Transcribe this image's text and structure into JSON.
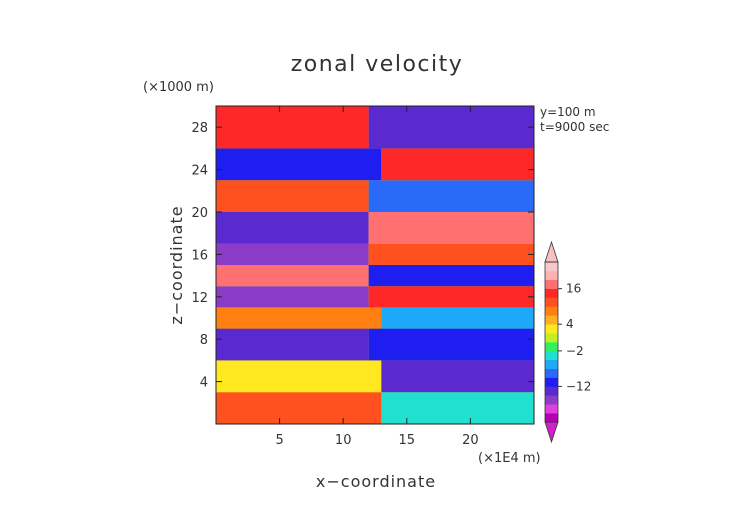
{
  "chart_data": {
    "type": "heatmap",
    "title": "zonal velocity",
    "xlabel": "x−coordinate",
    "ylabel": "z−coordinate",
    "x_unit": "(×1E4 m)",
    "y_unit": "(×1000 m)",
    "annotations": [
      "y=100 m",
      "t=9000 sec"
    ],
    "xlim": [
      0,
      25
    ],
    "ylim": [
      0,
      30
    ],
    "x_ticks": [
      5,
      10,
      15,
      20
    ],
    "y_ticks": [
      4,
      8,
      12,
      16,
      20,
      24,
      28
    ],
    "colorbar": {
      "labels": [
        {
          "value": 16,
          "text": "16"
        },
        {
          "value": 4,
          "text": "4"
        },
        {
          "value": -2,
          "text": "−2"
        },
        {
          "value": -12,
          "text": "−12"
        }
      ],
      "levels": [
        -21,
        -18,
        -15,
        -12,
        -9,
        -6,
        -4,
        -2,
        0,
        2,
        4,
        7,
        10,
        13,
        16,
        19,
        22
      ],
      "colors": [
        "#b200b2",
        "#e040e0",
        "#8a3cc8",
        "#5a2ad0",
        "#1e1ef0",
        "#2a6af8",
        "#1ea8f8",
        "#20e0d0",
        "#30f060",
        "#c0f020",
        "#ffe820",
        "#ffb020",
        "#ff8010",
        "#ff5020",
        "#ff2828",
        "#ff7070",
        "#ffb0b0",
        "#f8c8c8"
      ]
    },
    "bands": [
      {
        "z": [
          0,
          3
        ],
        "x_split": 13,
        "left": 10,
        "right": -4
      },
      {
        "z": [
          3,
          6
        ],
        "x_split": 13,
        "left": 2,
        "right": -14
      },
      {
        "z": [
          6,
          9
        ],
        "x_split": 12,
        "left": -14,
        "right": -10
      },
      {
        "z": [
          9,
          11
        ],
        "x_split": 13,
        "left": 8,
        "right": -6
      },
      {
        "z": [
          11,
          13
        ],
        "x_split": 12,
        "left": -16,
        "right": 14
      },
      {
        "z": [
          13,
          15
        ],
        "x_split": 12,
        "left": 17,
        "right": -12
      },
      {
        "z": [
          15,
          17
        ],
        "x_split": 12,
        "left": -16,
        "right": 12
      },
      {
        "z": [
          17,
          20
        ],
        "x_split": 12,
        "left": -13,
        "right": 16
      },
      {
        "z": [
          20,
          23
        ],
        "x_split": 12,
        "left": 12,
        "right": -8
      },
      {
        "z": [
          23,
          26
        ],
        "x_split": 13,
        "left": -10,
        "right": 14
      },
      {
        "z": [
          26,
          30
        ],
        "x_split": 12,
        "left": 15,
        "right": -15
      }
    ]
  }
}
